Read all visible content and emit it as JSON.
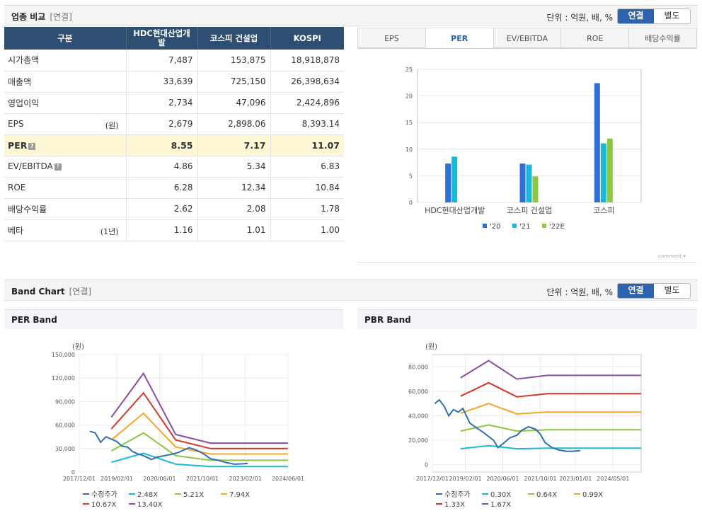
{
  "compare": {
    "title": "업종 비교",
    "sub": "[연결]",
    "unit": "단위 : 억원, 배, %",
    "toggle": [
      "연결",
      "별도"
    ],
    "headers": [
      "구분",
      "HDC현대산업개발",
      "코스피 건설업",
      "KOSPI"
    ],
    "rows": [
      {
        "label": "시가총액",
        "note": "",
        "values": [
          "7,487",
          "153,875",
          "18,918,878"
        ]
      },
      {
        "label": "매출액",
        "note": "",
        "values": [
          "33,639",
          "725,150",
          "26,398,634"
        ]
      },
      {
        "label": "영업이익",
        "note": "",
        "values": [
          "2,734",
          "47,096",
          "2,424,896"
        ]
      },
      {
        "label": "EPS",
        "note": "(원)",
        "values": [
          "2,679",
          "2,898.06",
          "8,393.14"
        ]
      },
      {
        "label": "PER",
        "note": "",
        "values": [
          "8.55",
          "7.17",
          "11.07"
        ],
        "highlight": true,
        "info": true
      },
      {
        "label": "EV/EBITDA",
        "note": "",
        "values": [
          "4.86",
          "5.34",
          "6.83"
        ],
        "info": true
      },
      {
        "label": "ROE",
        "note": "",
        "values": [
          "6.28",
          "12.34",
          "10.84"
        ]
      },
      {
        "label": "배당수익률",
        "note": "",
        "values": [
          "2.62",
          "2.08",
          "1.78"
        ]
      },
      {
        "label": "베타",
        "note": "(1년)",
        "values": [
          "1.16",
          "1.01",
          "1.00"
        ]
      }
    ],
    "tabs": [
      "EPS",
      "PER",
      "EV/EBITDA",
      "ROE",
      "배당수익률"
    ],
    "active_tab": "PER",
    "comment": "comment"
  },
  "band": {
    "title": "Band Chart",
    "sub": "[연결]",
    "unit": "단위 : 억원, 배, %",
    "toggle": [
      "연결",
      "별도"
    ]
  },
  "chart_data": [
    {
      "type": "bar",
      "categories": [
        "HDC현대산업개발",
        "코스피 건설업",
        "코스피"
      ],
      "series": [
        {
          "name": "'20",
          "values": [
            7.3,
            7.3,
            22.4
          ]
        },
        {
          "name": "'21",
          "values": [
            8.6,
            7.1,
            11.1
          ]
        },
        {
          "name": "'22E",
          "values": [
            null,
            4.9,
            12.0
          ]
        }
      ],
      "ylim": [
        0,
        25
      ],
      "yticks": [
        0,
        5,
        10,
        15,
        20,
        25
      ],
      "colors": [
        "#2f6fd6",
        "#18b9d8",
        "#8dc63f"
      ],
      "legend": "bottom"
    },
    {
      "type": "line",
      "title": "PER Band",
      "ylabel": "(원)",
      "ylim": [
        0,
        150000
      ],
      "yticks": [
        0,
        30000,
        60000,
        90000,
        120000,
        150000
      ],
      "ytick_labels": [
        "0",
        "30,000",
        "60,000",
        "90,000",
        "120,000",
        "150,000"
      ],
      "xlim": [
        "2017-12-01",
        "2024-06-01"
      ],
      "xticks": [
        "2017/12/01",
        "2019/02/01",
        "2020/06/01",
        "2021/10/01",
        "2023/02/01",
        "2024/06/01"
      ],
      "legend": "bottom",
      "series": [
        {
          "name": "수정주가",
          "color": "#2f6fad",
          "points": [
            [
              "2018-04-01",
              52000
            ],
            [
              "2018-06-01",
              50000
            ],
            [
              "2018-08-01",
              38000
            ],
            [
              "2018-10-01",
              45000
            ],
            [
              "2018-12-01",
              42000
            ],
            [
              "2019-02-01",
              39000
            ],
            [
              "2019-04-01",
              33000
            ],
            [
              "2019-06-01",
              32000
            ],
            [
              "2019-08-01",
              26000
            ],
            [
              "2019-10-01",
              23000
            ],
            [
              "2019-12-01",
              21000
            ],
            [
              "2020-03-01",
              16000
            ],
            [
              "2020-05-01",
              19000
            ],
            [
              "2020-08-01",
              21000
            ],
            [
              "2020-11-01",
              23000
            ],
            [
              "2021-01-01",
              25000
            ],
            [
              "2021-03-01",
              28000
            ],
            [
              "2021-05-01",
              31000
            ],
            [
              "2021-07-01",
              29000
            ],
            [
              "2021-09-01",
              26000
            ],
            [
              "2021-11-01",
              22000
            ],
            [
              "2022-01-01",
              17000
            ],
            [
              "2022-04-01",
              15000
            ],
            [
              "2022-07-01",
              12000
            ],
            [
              "2022-10-01",
              10000
            ],
            [
              "2023-01-01",
              10500
            ],
            [
              "2023-03-01",
              11000
            ]
          ]
        },
        {
          "name": "2.48X",
          "color": "#18b9d8",
          "points": [
            [
              "2018-12-01",
              12500
            ],
            [
              "2019-12-01",
              24000
            ],
            [
              "2020-12-01",
              10000
            ],
            [
              "2022-01-01",
              7000
            ],
            [
              "2024-06-01",
              7000
            ]
          ]
        },
        {
          "name": "5.21X",
          "color": "#8dc63f",
          "points": [
            [
              "2018-12-01",
              27000
            ],
            [
              "2019-12-01",
              50000
            ],
            [
              "2020-12-01",
              21000
            ],
            [
              "2022-01-01",
              15000
            ],
            [
              "2024-06-01",
              15000
            ]
          ]
        },
        {
          "name": "7.94X",
          "color": "#f5a623",
          "points": [
            [
              "2018-12-01",
              41000
            ],
            [
              "2019-12-01",
              75000
            ],
            [
              "2020-12-01",
              32000
            ],
            [
              "2022-01-01",
              23000
            ],
            [
              "2024-06-01",
              23000
            ]
          ]
        },
        {
          "name": "10.67X",
          "color": "#d13a2a",
          "points": [
            [
              "2018-12-01",
              55000
            ],
            [
              "2019-12-01",
              101000
            ],
            [
              "2020-12-01",
              41000
            ],
            [
              "2022-01-01",
              30000
            ],
            [
              "2024-06-01",
              30000
            ]
          ]
        },
        {
          "name": "13.40X",
          "color": "#8a4da3",
          "points": [
            [
              "2018-12-01",
              70000
            ],
            [
              "2019-12-01",
              126000
            ],
            [
              "2020-12-01",
              48000
            ],
            [
              "2022-01-01",
              37000
            ],
            [
              "2024-06-01",
              37000
            ]
          ]
        }
      ]
    },
    {
      "type": "line",
      "title": "PBR Band",
      "ylabel": "(원)",
      "ylim": [
        -6000,
        90000
      ],
      "yticks": [
        0,
        20000,
        40000,
        60000,
        80000
      ],
      "ytick_labels": [
        "0",
        "20,000",
        "40,000",
        "60,000",
        "80,000"
      ],
      "xlim": [
        "2017-12-01",
        "2025-05-01"
      ],
      "xticks": [
        "2017/12/01",
        "2019/02/01",
        "2020/06/01",
        "2021/10/01",
        "2023/01/01",
        "2024/05/01"
      ],
      "legend": "bottom",
      "series": [
        {
          "name": "수정주가",
          "color": "#2f6fad",
          "points": [
            [
              "2018-01-01",
              50000
            ],
            [
              "2018-03-01",
              53000
            ],
            [
              "2018-05-01",
              48000
            ],
            [
              "2018-07-01",
              40000
            ],
            [
              "2018-09-01",
              45000
            ],
            [
              "2018-11-01",
              43000
            ],
            [
              "2019-01-01",
              46000
            ],
            [
              "2019-04-01",
              34000
            ],
            [
              "2019-07-01",
              30000
            ],
            [
              "2019-10-01",
              26000
            ],
            [
              "2020-02-01",
              20000
            ],
            [
              "2020-04-01",
              14000
            ],
            [
              "2020-06-01",
              17000
            ],
            [
              "2020-09-01",
              22000
            ],
            [
              "2020-12-01",
              24000
            ],
            [
              "2021-02-01",
              28000
            ],
            [
              "2021-05-01",
              31000
            ],
            [
              "2021-08-01",
              29000
            ],
            [
              "2021-10-01",
              25000
            ],
            [
              "2021-12-01",
              18000
            ],
            [
              "2022-03-01",
              14000
            ],
            [
              "2022-06-01",
              12000
            ],
            [
              "2022-09-01",
              11000
            ],
            [
              "2022-12-01",
              11000
            ],
            [
              "2023-03-01",
              11500
            ]
          ]
        },
        {
          "name": "0.30X",
          "color": "#18b9d8",
          "points": [
            [
              "2018-12-01",
              13000
            ],
            [
              "2019-12-01",
              15500
            ],
            [
              "2020-12-01",
              13000
            ],
            [
              "2022-01-01",
              13500
            ],
            [
              "2025-05-01",
              13500
            ]
          ]
        },
        {
          "name": "0.64X",
          "color": "#8dc63f",
          "points": [
            [
              "2018-12-01",
              27500
            ],
            [
              "2019-12-01",
              32500
            ],
            [
              "2020-12-01",
              27500
            ],
            [
              "2022-01-01",
              28500
            ],
            [
              "2025-05-01",
              28500
            ]
          ]
        },
        {
          "name": "0.99X",
          "color": "#f5a623",
          "points": [
            [
              "2018-12-01",
              42000
            ],
            [
              "2019-12-01",
              50000
            ],
            [
              "2020-12-01",
              41500
            ],
            [
              "2022-01-01",
              43000
            ],
            [
              "2025-05-01",
              43000
            ]
          ]
        },
        {
          "name": "1.33X",
          "color": "#d13a2a",
          "points": [
            [
              "2018-12-01",
              56000
            ],
            [
              "2019-12-01",
              67000
            ],
            [
              "2020-12-01",
              55500
            ],
            [
              "2022-01-01",
              58000
            ],
            [
              "2025-05-01",
              58000
            ]
          ]
        },
        {
          "name": "1.67X",
          "color": "#8a4da3",
          "points": [
            [
              "2018-12-01",
              71000
            ],
            [
              "2019-12-01",
              85000
            ],
            [
              "2020-12-01",
              70000
            ],
            [
              "2022-01-01",
              73000
            ],
            [
              "2025-05-01",
              73000
            ]
          ]
        }
      ]
    }
  ]
}
